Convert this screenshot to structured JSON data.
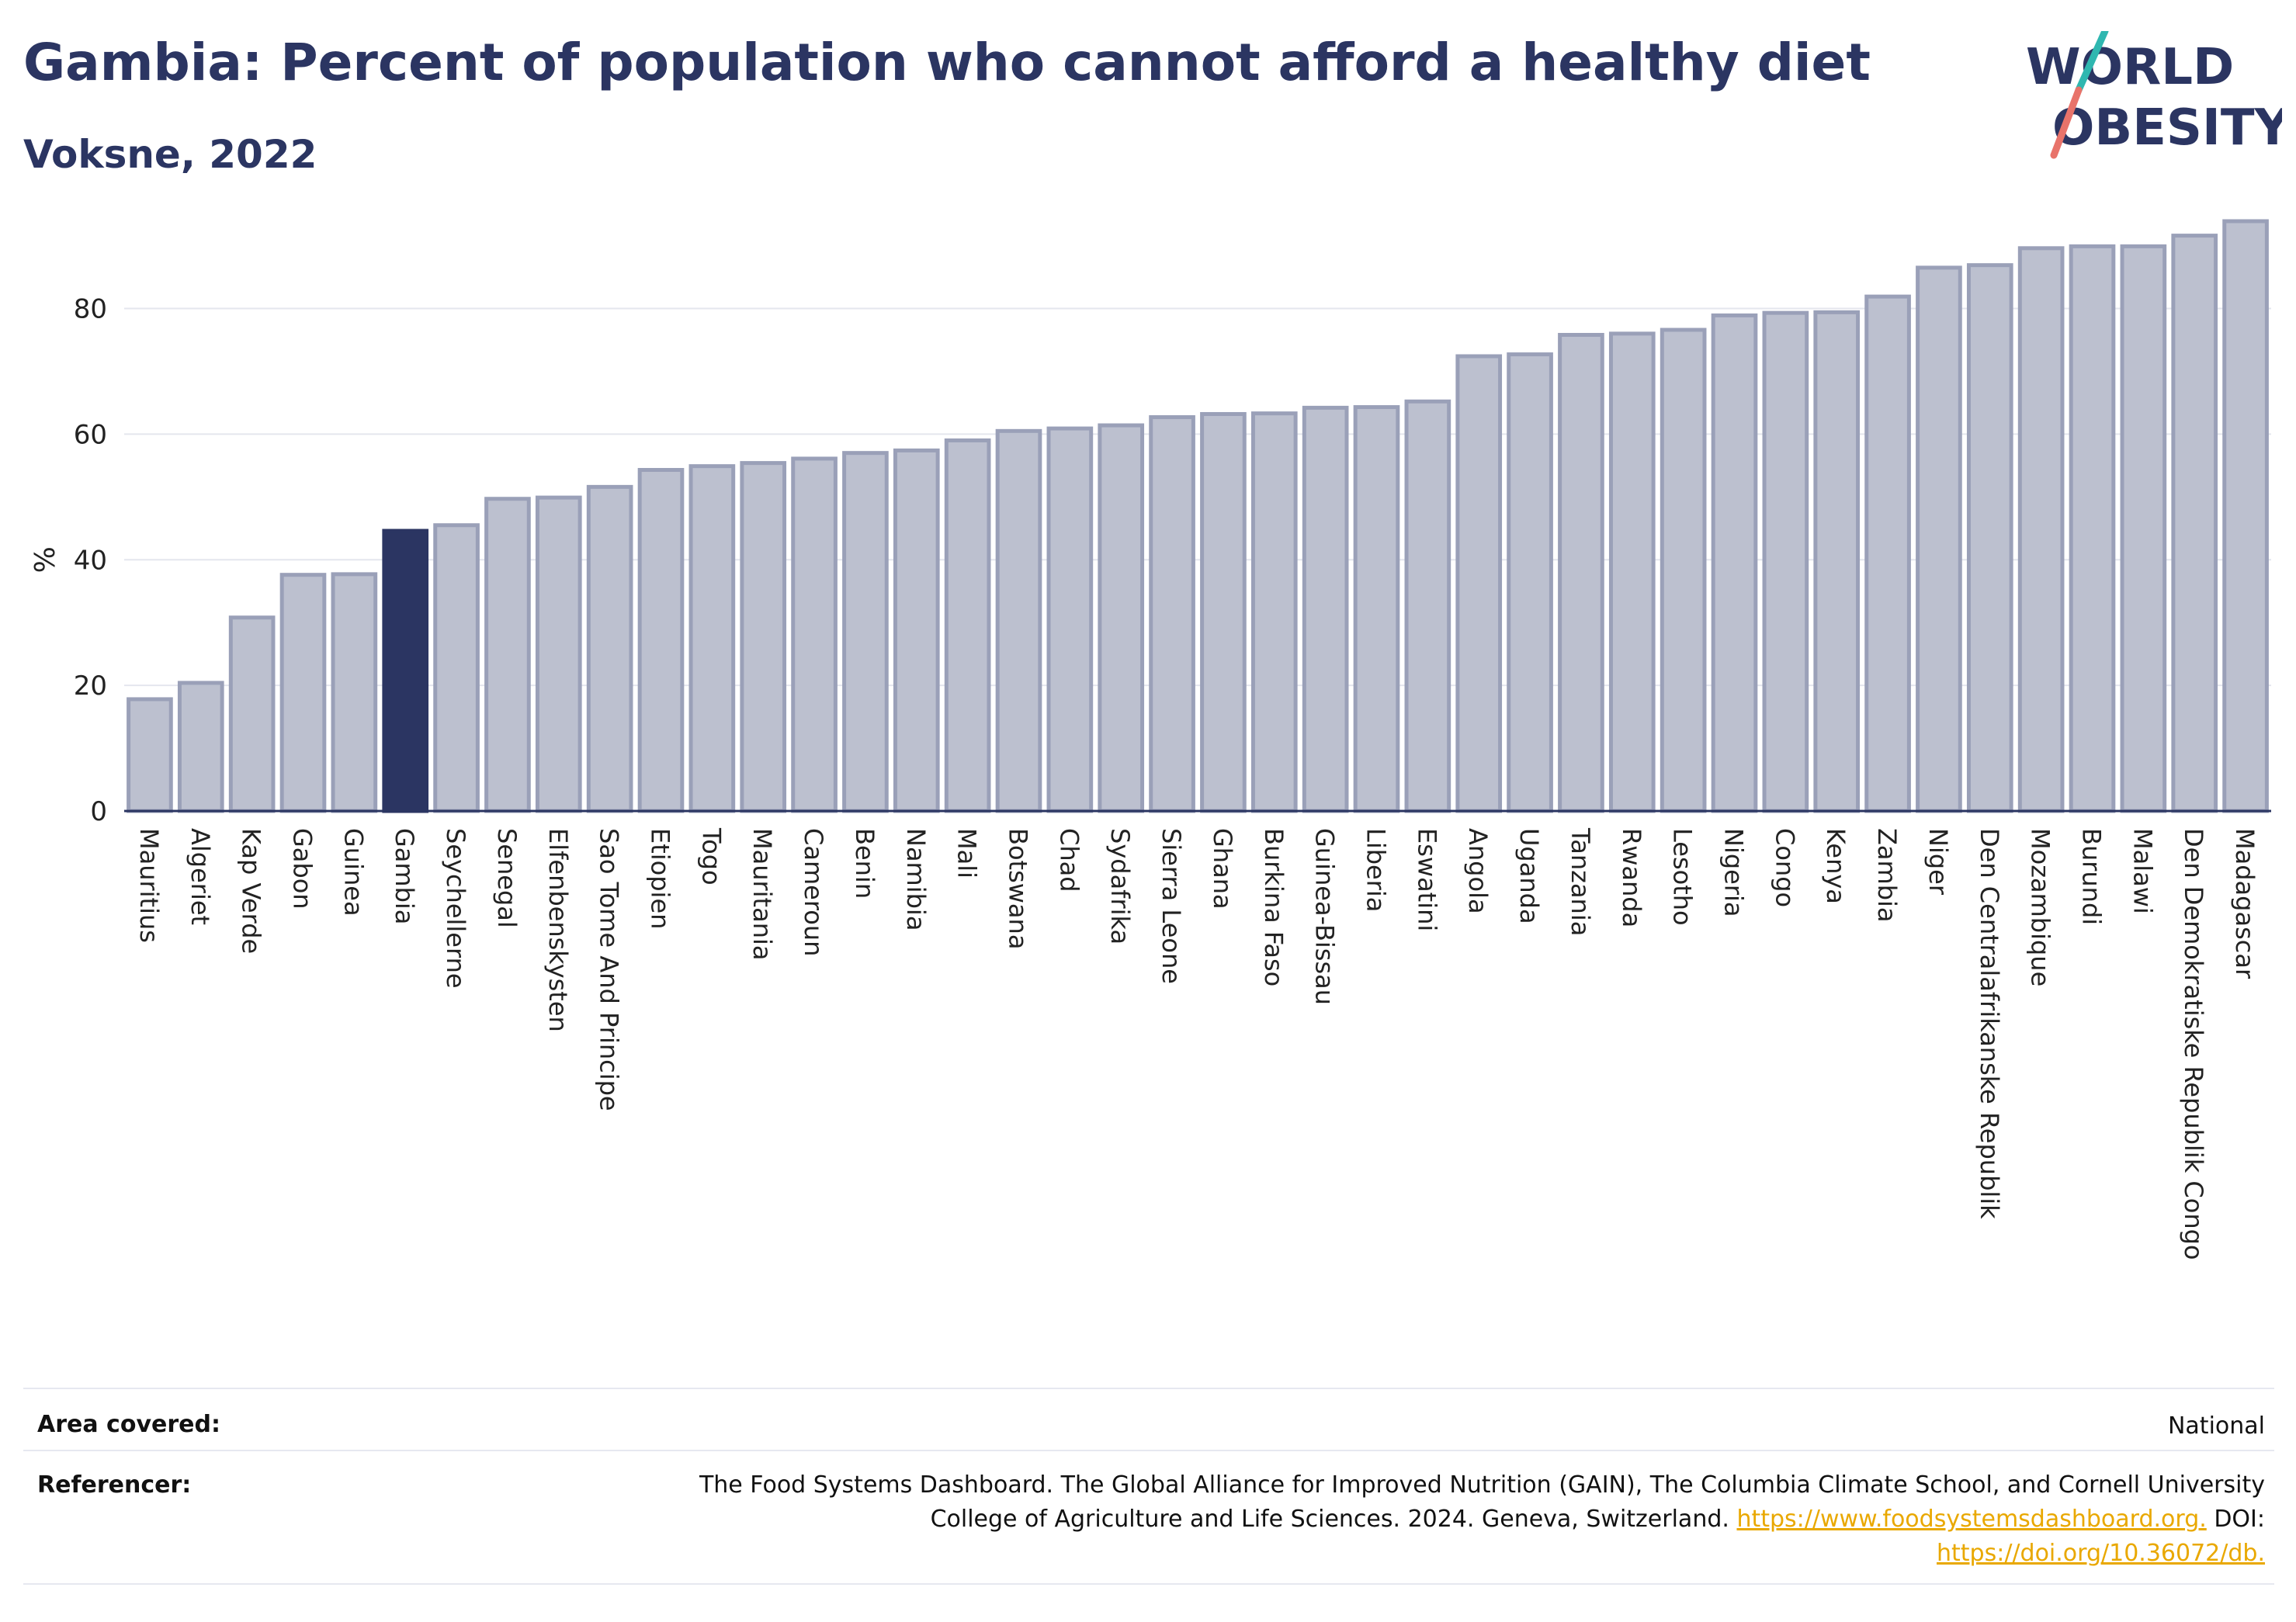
{
  "header": {
    "title": "Gambia: Percent of population who cannot afford a healthy diet",
    "subtitle": "Voksne, 2022"
  },
  "logo": {
    "line1": "WORLD",
    "line2": "OBESITY"
  },
  "colors": {
    "highlight_bar": "#2b3562",
    "bar_fill": "#bcc0cf",
    "bar_stroke": "#9aa0b8",
    "logo_slash_teal": "#2fb7b0",
    "logo_slash_coral": "#e8736a"
  },
  "chart_data": {
    "type": "bar",
    "ylabel": "%",
    "xlabel": "",
    "ylim": [
      0,
      96
    ],
    "yticks": [
      0,
      20,
      40,
      60,
      80
    ],
    "grid": true,
    "highlight": "Gambia",
    "categories": [
      "Mauritius",
      "Algeriet",
      "Kap Verde",
      "Gabon",
      "Guinea",
      "Gambia",
      "Seychellerne",
      "Senegal",
      "Elfenbenskysten",
      "Sao Tome And Principe",
      "Etiopien",
      "Togo",
      "Mauritania",
      "Cameroun",
      "Benin",
      "Namibia",
      "Mali",
      "Botswana",
      "Chad",
      "Sydafrika",
      "Sierra Leone",
      "Ghana",
      "Burkina Faso",
      "Guinea-Bissau",
      "Liberia",
      "Eswatini",
      "Angola",
      "Uganda",
      "Tanzania",
      "Rwanda",
      "Lesotho",
      "Nigeria",
      "Congo",
      "Kenya",
      "Zambia",
      "Niger",
      "Den Centralafrikanske Republik",
      "Mozambique",
      "Burundi",
      "Malawi",
      "Den Demokratiske Republik Congo",
      "Madagascar"
    ],
    "values": [
      17.8,
      20.4,
      30.8,
      37.6,
      37.7,
      44.6,
      45.5,
      49.7,
      49.9,
      51.6,
      54.3,
      54.9,
      55.4,
      56.1,
      57.0,
      57.4,
      59.0,
      60.5,
      60.9,
      61.4,
      62.7,
      63.2,
      63.3,
      64.2,
      64.3,
      65.2,
      72.4,
      72.7,
      75.8,
      76.0,
      76.6,
      78.9,
      79.3,
      79.4,
      81.9,
      86.5,
      86.9,
      89.6,
      89.9,
      89.9,
      91.6,
      93.9
    ]
  },
  "footer": {
    "area_label": "Area covered:",
    "area_value": "National",
    "ref_label": "Referencer:",
    "ref_line1": "The Food Systems Dashboard. The Global Alliance for Improved Nutrition (GAIN), The Columbia Climate School, and Cornell University",
    "ref_line2": "College of Agriculture and Life Sciences. 2024. Geneva, Switzerland.",
    "ref_link1": "https://www.foodsystemsdashboard.org.",
    "ref_doi": "DOI:",
    "ref_link2": "https://doi.org/10.36072/db."
  }
}
